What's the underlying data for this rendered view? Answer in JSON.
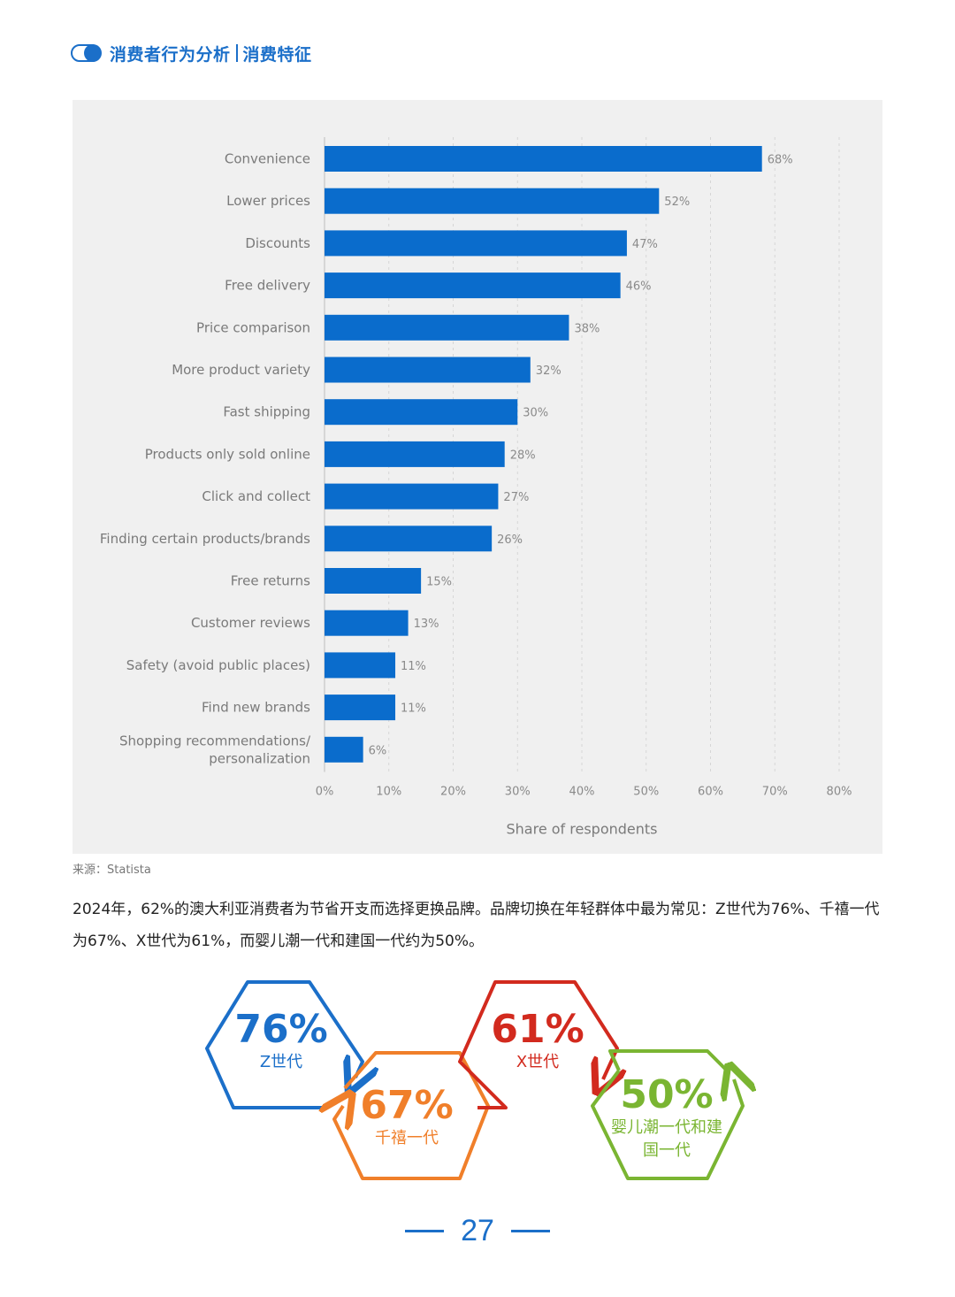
{
  "header": {
    "title_left": "消费者行为分析",
    "title_right": "消费特征"
  },
  "chart_data": {
    "type": "bar",
    "orientation": "horizontal",
    "categories": [
      "Convenience",
      "Lower prices",
      "Discounts",
      "Free delivery",
      "Price comparison",
      "More product variety",
      "Fast shipping",
      "Products only sold online",
      "Click and collect",
      "Finding certain products/brands",
      "Free returns",
      "Customer reviews",
      "Safety (avoid public places)",
      "Find new brands",
      "Shopping recommendations/ personalization"
    ],
    "values": [
      68,
      52,
      47,
      46,
      38,
      32,
      30,
      28,
      27,
      26,
      15,
      13,
      11,
      11,
      6
    ],
    "value_labels": [
      "68%",
      "52%",
      "47%",
      "46%",
      "38%",
      "32%",
      "30%",
      "28%",
      "27%",
      "26%",
      "15%",
      "13%",
      "11%",
      "11%",
      "6%"
    ],
    "xlim": [
      0,
      80
    ],
    "x_ticks": [
      "0%",
      "10%",
      "20%",
      "30%",
      "40%",
      "50%",
      "60%",
      "70%",
      "80%"
    ],
    "xlabel": "Share of respondents",
    "ylabel": "",
    "grid": "vertical dashed",
    "bar_color": "#0a6ccc"
  },
  "source": "来源：Statista",
  "paragraph": "2024年，62%的澳大利亚消费者为节省开支而选择更换品牌。品牌切换在年轻群体中最为常见：Z世代为76%、千禧一代为67%、X世代为61%，而婴儿潮一代和建国一代约为50%。",
  "infographic": {
    "items": [
      {
        "pct": "76%",
        "label": "Z世代",
        "color": "#1b6fc9"
      },
      {
        "pct": "67%",
        "label": "千禧一代",
        "color": "#f07f2a"
      },
      {
        "pct": "61%",
        "label": "X世代",
        "color": "#d22a1e"
      },
      {
        "pct": "50%",
        "label": "婴儿潮一代和建国一代",
        "color": "#7ab532"
      }
    ]
  },
  "page_number": "27"
}
